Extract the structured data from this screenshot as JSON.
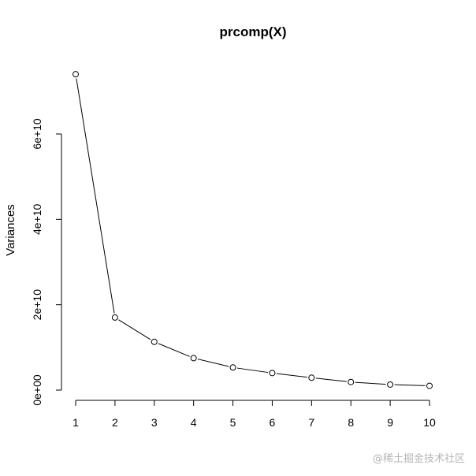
{
  "chart_data": {
    "type": "line",
    "title": "prcomp(X)",
    "xlabel": "",
    "ylabel": "Variances",
    "x": [
      1,
      2,
      3,
      4,
      5,
      6,
      7,
      8,
      9,
      10
    ],
    "values": [
      74000000000,
      17000000000,
      11300000000,
      7500000000,
      5300000000,
      4000000000,
      2900000000,
      1900000000,
      1300000000,
      1000000000
    ],
    "x_ticks": [
      "1",
      "2",
      "3",
      "4",
      "5",
      "6",
      "7",
      "8",
      "9",
      "10"
    ],
    "y_ticks": [
      {
        "value": 0,
        "label": "0e+00"
      },
      {
        "value": 20000000000,
        "label": "2e+10"
      },
      {
        "value": 40000000000,
        "label": "4e+10"
      },
      {
        "value": 60000000000,
        "label": "6e+10"
      }
    ],
    "xlim": [
      1,
      10
    ],
    "ylim": [
      0,
      74000000000
    ],
    "grid": false,
    "markers": "open-circle",
    "line_color": "#000000"
  },
  "watermark": "@稀土掘金技术社区"
}
